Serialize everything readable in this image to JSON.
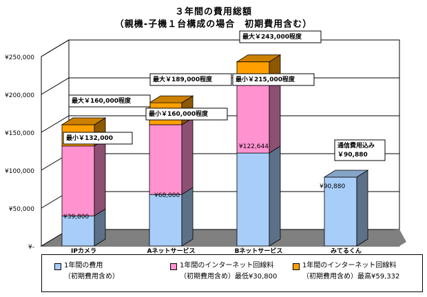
{
  "title_line1": "３年間の費用総額",
  "title_line2": "（親機-子機１台構成の場合　初期費用含む）",
  "chart_data": {
    "type": "bar",
    "stacked": true,
    "categories": [
      "IPカメラ",
      "Aネットサービス",
      "Bネットサービス",
      "みてるくん"
    ],
    "series": [
      {
        "name": "1年間の費用 （初期費用含め）",
        "color": "#a8cdf8",
        "values": [
          39800,
          68000,
          122644,
          90880
        ]
      },
      {
        "name": "1年間のインターネット回線料 （初期費用含め）最低¥30,800",
        "color": "#ff92cf",
        "values": [
          92200,
          92000,
          92356,
          0
        ]
      },
      {
        "name": "1年間のインターネット回線料 （初期費用含め）最高¥59,332",
        "color": "#ffa000",
        "values": [
          28000,
          29000,
          28000,
          0
        ]
      }
    ],
    "y_ticks": [
      "¥-",
      "¥50,000",
      "¥100,000",
      "¥150,000",
      "¥200,000",
      "¥250,000"
    ],
    "ylim": [
      0,
      250000
    ],
    "grid": true,
    "data_labels": [
      {
        "bar": 0,
        "text": "¥39,800",
        "boxed": false
      },
      {
        "bar": 0,
        "text": "最小￥132,000",
        "boxed": true
      },
      {
        "bar": 0,
        "text": "最大￥160,000程度",
        "boxed": true
      },
      {
        "bar": 1,
        "text": "¥68,000",
        "boxed": false
      },
      {
        "bar": 1,
        "text": "最小￥160,000程度",
        "boxed": true
      },
      {
        "bar": 1,
        "text": "最大￥189,000程度",
        "boxed": true
      },
      {
        "bar": 2,
        "text": "¥122,644",
        "boxed": false
      },
      {
        "bar": 2,
        "text": "最小￥215,000程度",
        "boxed": true
      },
      {
        "bar": 2,
        "text": "最大￥243,000程度",
        "boxed": true
      },
      {
        "bar": 3,
        "text": "¥90,880",
        "boxed": false
      },
      {
        "bar": 3,
        "text": "通信費用込み ￥90,880",
        "boxed": true
      }
    ],
    "legend_position": "bottom"
  },
  "legend": [
    {
      "line1": "1年間の費用",
      "line2": "（初期費用含め）"
    },
    {
      "line1": "1年間のインターネット回線料",
      "line2": "（初期費用含め）最低¥30,800"
    },
    {
      "line1": "1年間のインターネット回線料",
      "line2": "（初期費用含め）最高¥59,332"
    }
  ]
}
